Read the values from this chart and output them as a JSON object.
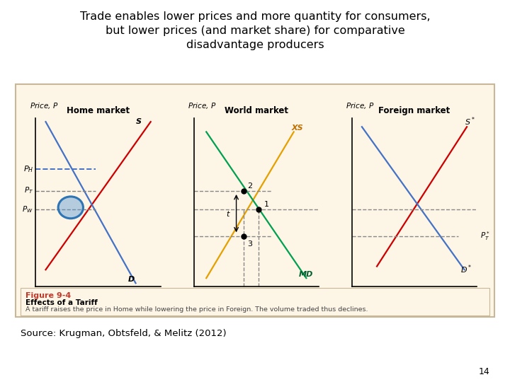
{
  "title": "Trade enables lower prices and more quantity for consumers,\nbut lower prices (and market share) for comparative\ndisadvantage producers",
  "title_fontsize": 11.5,
  "source_text": "Source: Krugman, Obtsfeld, & Melitz (2012)",
  "page_number": "14",
  "figure_label": "Figure 9-4",
  "figure_subtitle": "Effects of a Tariff",
  "figure_caption": "A tariff raises the price in Home while lowering the price in Foreign. The volume traded thus declines.",
  "background_color": "#fdf5e6",
  "border_color": "#c8b89a",
  "home_title": "Home market",
  "world_title": "World market",
  "foreign_title": "Foreign market",
  "PH": 0.7,
  "PT": 0.57,
  "PW": 0.46,
  "PT_star": 0.3,
  "QT": 0.4,
  "QW": 0.52
}
